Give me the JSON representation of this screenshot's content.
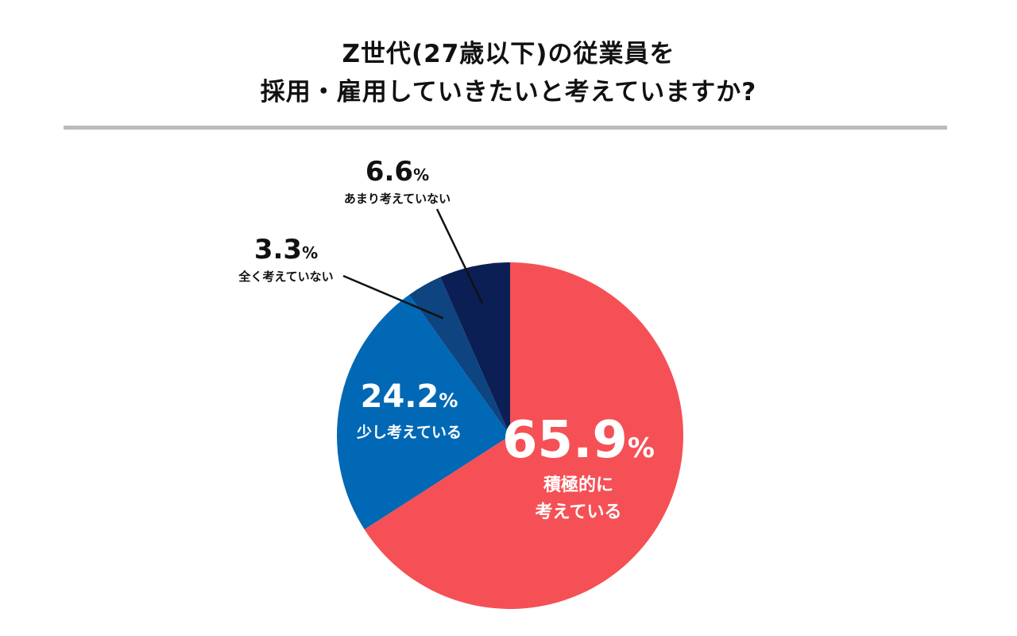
{
  "title": {
    "line1": "Z世代(27歳以下)の従業員を",
    "line2": "採用・雇用していきたいと考えていますか?"
  },
  "chart_data": {
    "type": "pie",
    "start": "12 o'clock",
    "direction": "clockwise",
    "slices": [
      {
        "value_text": "65.9",
        "unit": "%",
        "value": 65.9,
        "label_lines": [
          "積極的に",
          "考えている"
        ],
        "color": "#f55055",
        "label_color": "#ffffff",
        "label_placement": "inside"
      },
      {
        "value_text": "24.2",
        "unit": "%",
        "value": 24.2,
        "label_lines": [
          "少し考えている"
        ],
        "color": "#0168b5",
        "label_color": "#ffffff",
        "label_placement": "inside"
      },
      {
        "value_text": "3.3",
        "unit": "%",
        "value": 3.3,
        "label_lines": [
          "全く考えていない"
        ],
        "color": "#0e4480",
        "label_color": "#111111",
        "label_placement": "outside"
      },
      {
        "value_text": "6.6",
        "unit": "%",
        "value": 6.6,
        "label_lines": [
          "あまり考えていない"
        ],
        "color": "#0b1f55",
        "label_color": "#111111",
        "label_placement": "outside"
      }
    ]
  }
}
